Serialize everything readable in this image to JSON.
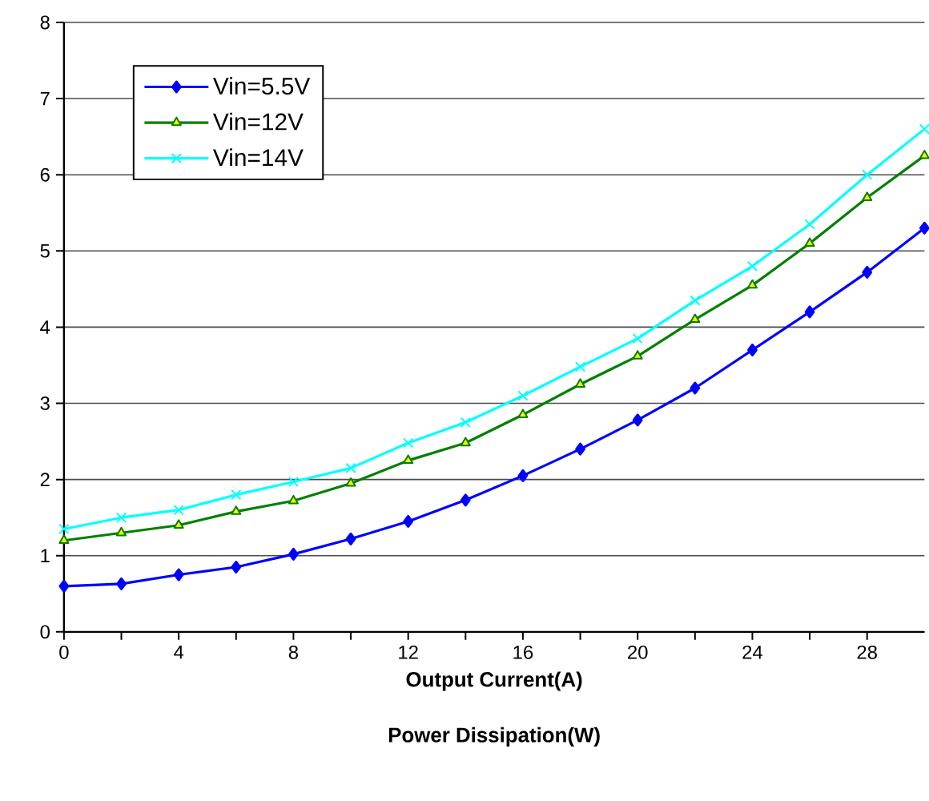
{
  "chart_data": {
    "type": "line",
    "title": "Power Dissipation(W)",
    "xlabel": "Output Current(A)",
    "x": [
      0,
      2,
      4,
      6,
      8,
      10,
      12,
      14,
      16,
      18,
      20,
      22,
      24,
      26,
      28,
      30
    ],
    "series": [
      {
        "name": "Vin=5.5V",
        "color": "#0000ff",
        "marker": "diamond",
        "values": [
          0.6,
          0.63,
          0.75,
          0.85,
          1.02,
          1.22,
          1.45,
          1.73,
          2.05,
          2.4,
          2.78,
          3.2,
          3.7,
          4.2,
          4.72,
          5.3
        ]
      },
      {
        "name": "Vin=12V",
        "color": "#008000",
        "marker": "triangle",
        "values": [
          1.2,
          1.3,
          1.4,
          1.58,
          1.72,
          1.95,
          2.25,
          2.48,
          2.85,
          3.25,
          3.62,
          4.1,
          4.55,
          5.1,
          5.7,
          6.25
        ]
      },
      {
        "name": "Vin=14V",
        "color": "#00ffff",
        "marker": "cross",
        "values": [
          1.35,
          1.5,
          1.6,
          1.8,
          1.97,
          2.15,
          2.48,
          2.75,
          3.1,
          3.48,
          3.85,
          4.35,
          4.8,
          5.35,
          6.0,
          6.6
        ]
      }
    ],
    "xlim": [
      0,
      30
    ],
    "xticks": [
      0,
      4,
      8,
      12,
      16,
      20,
      24,
      28
    ],
    "ylim": [
      0,
      8
    ],
    "yticks": [
      0,
      1,
      2,
      3,
      4,
      5,
      6,
      7,
      8
    ],
    "grid": "y",
    "legend": "top left",
    "line_style": "solid"
  }
}
